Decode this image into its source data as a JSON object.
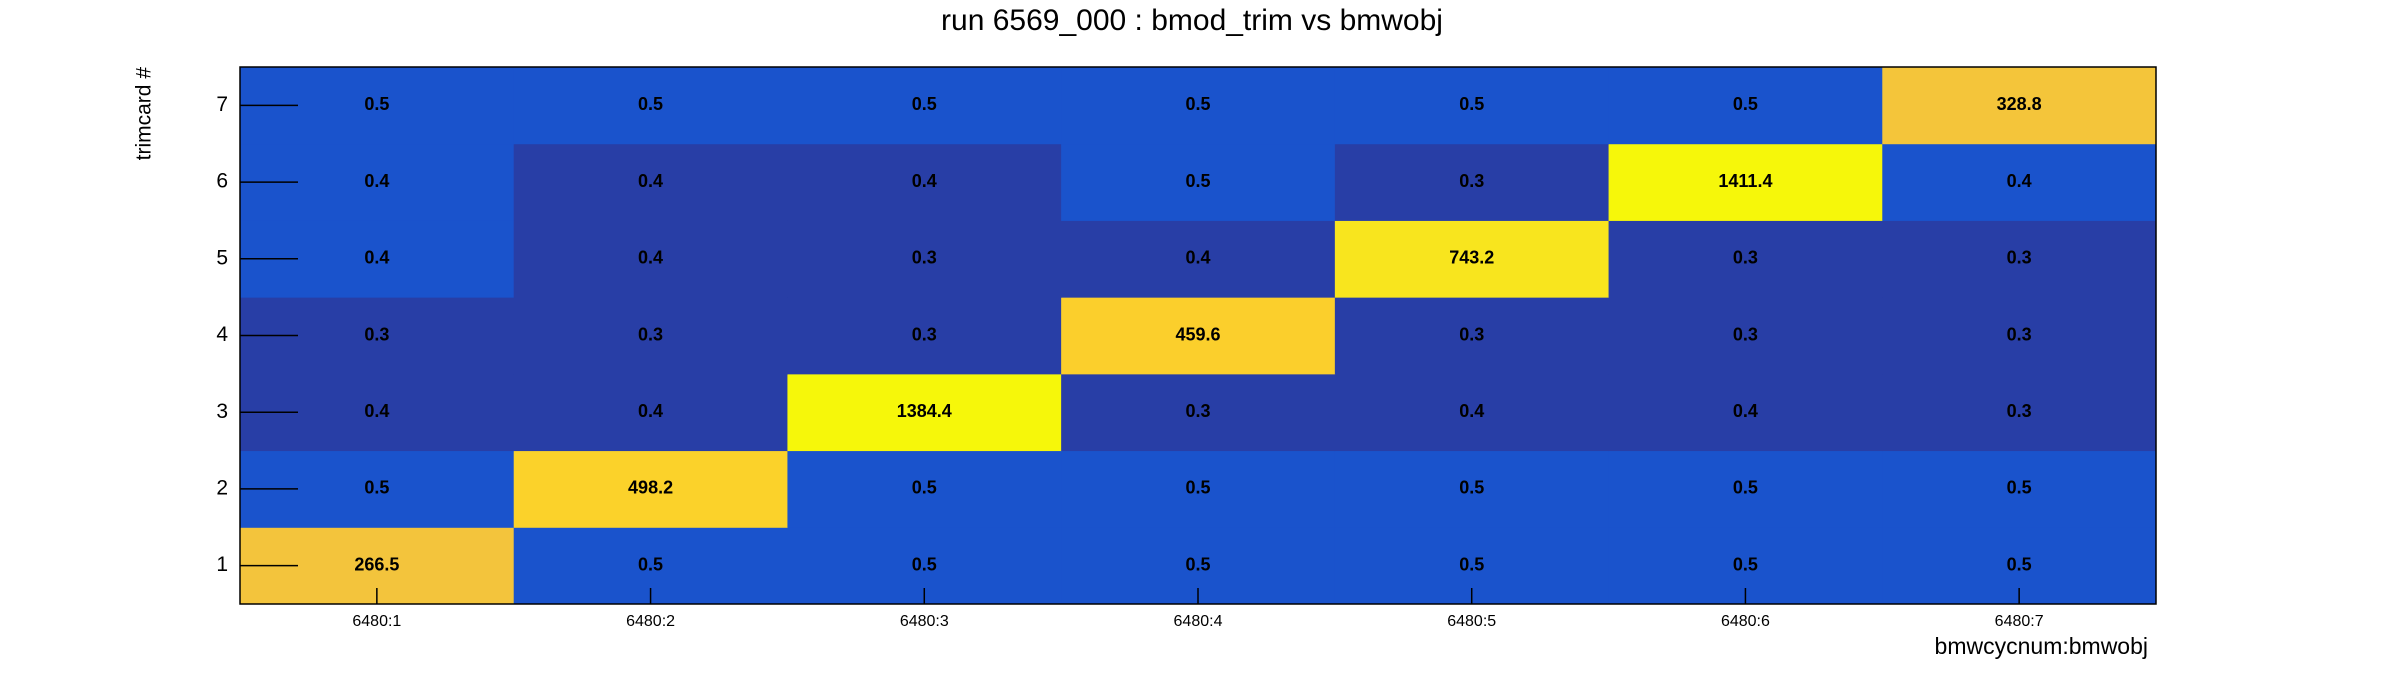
{
  "chart_data": {
    "type": "heatmap",
    "title": "run 6569_000 : bmod_trim vs bmwobj",
    "x_label": "bmwcycnum:bmwobj",
    "y_label": "trimcard #",
    "categories": [
      "6480:1",
      "6480:2",
      "6480:3",
      "6480:4",
      "6480:5",
      "6480:6",
      "6480:7"
    ],
    "y_categories": [
      1,
      2,
      3,
      4,
      5,
      6,
      7
    ],
    "z": [
      [
        266.5,
        0.5,
        0.5,
        0.5,
        0.5,
        0.5,
        0.5
      ],
      [
        0.5,
        498.2,
        0.5,
        0.5,
        0.5,
        0.5,
        0.5
      ],
      [
        0.4,
        0.4,
        1384.4,
        0.3,
        0.4,
        0.4,
        0.3
      ],
      [
        0.3,
        0.3,
        0.3,
        459.6,
        0.3,
        0.3,
        0.3
      ],
      [
        0.4,
        0.4,
        0.3,
        0.4,
        743.2,
        0.3,
        0.3
      ],
      [
        0.4,
        0.4,
        0.4,
        0.5,
        0.3,
        1411.4,
        0.4
      ],
      [
        0.5,
        0.5,
        0.5,
        0.5,
        0.5,
        0.5,
        328.8
      ]
    ],
    "colors": [
      [
        "#f3c43c",
        "#1a53cc",
        "#1a53cc",
        "#1a53cc",
        "#1a53cc",
        "#1a53cc",
        "#1a53cc"
      ],
      [
        "#1a53cc",
        "#fbd22a",
        "#1a53cc",
        "#1a53cc",
        "#1a53cc",
        "#1a53cc",
        "#1a53cc"
      ],
      [
        "#283ea6",
        "#283ea6",
        "#f6f70a",
        "#283ea6",
        "#283ea6",
        "#283ea6",
        "#283ea6"
      ],
      [
        "#283ea6",
        "#283ea6",
        "#283ea6",
        "#fbcf2c",
        "#283ea6",
        "#283ea6",
        "#283ea6"
      ],
      [
        "#1a53cc",
        "#283ea6",
        "#283ea6",
        "#283ea6",
        "#f8e51e",
        "#283ea6",
        "#283ea6"
      ],
      [
        "#1a53cc",
        "#283ea6",
        "#283ea6",
        "#1a53cc",
        "#283ea6",
        "#f6f70a",
        "#1a53cc"
      ],
      [
        "#1a53cc",
        "#1a53cc",
        "#1a53cc",
        "#1a53cc",
        "#1a53cc",
        "#1a53cc",
        "#f4c53a"
      ]
    ]
  }
}
